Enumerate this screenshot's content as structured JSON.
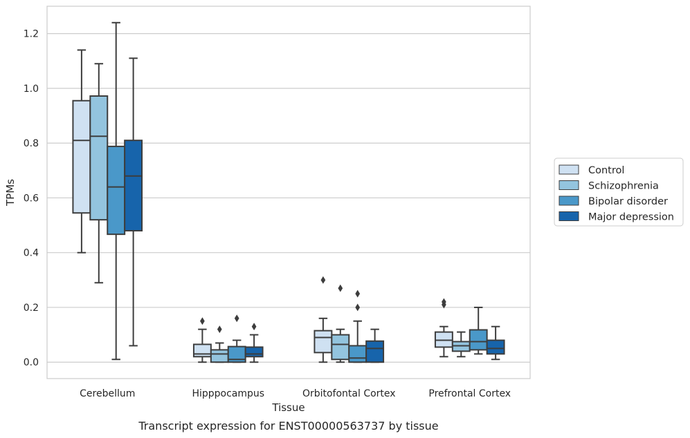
{
  "caption": "Transcript expression for ENST00000563737 by tissue",
  "colors": {
    "Control": "#cfe1f2",
    "Schizophrenia": "#93c4de",
    "Bipolar disorder": "#4a98c9",
    "Major depression": "#1764ab",
    "box_edge": "#3d3d3d",
    "grid": "#cccccc",
    "frame": "#cccccc"
  },
  "chart_data": {
    "type": "boxplot",
    "title": "",
    "xlabel": "Tissue",
    "ylabel": "TPMs",
    "ylim": [
      -0.06,
      1.3
    ],
    "yticks": [
      0.0,
      0.2,
      0.4,
      0.6,
      0.8,
      1.0,
      1.2
    ],
    "ytick_labels": [
      "0.0",
      "0.2",
      "0.4",
      "0.6",
      "0.8",
      "1.0",
      "1.2"
    ],
    "grid": "horizontal",
    "legend_position": "right",
    "categories": [
      "Cerebellum",
      "Hipppocampus",
      "Orbitofontal Cortex",
      "Prefrontal Cortex"
    ],
    "series": [
      {
        "name": "Control",
        "boxes": [
          {
            "whisker_low": 0.4,
            "q1": 0.545,
            "median": 0.81,
            "q3": 0.955,
            "whisker_high": 1.14,
            "outliers": []
          },
          {
            "whisker_low": 0.0,
            "q1": 0.02,
            "median": 0.03,
            "q3": 0.065,
            "whisker_high": 0.12,
            "outliers": [
              0.15
            ]
          },
          {
            "whisker_low": 0.0,
            "q1": 0.035,
            "median": 0.09,
            "q3": 0.115,
            "whisker_high": 0.16,
            "outliers": [
              0.3
            ]
          },
          {
            "whisker_low": 0.02,
            "q1": 0.055,
            "median": 0.08,
            "q3": 0.11,
            "whisker_high": 0.13,
            "outliers": [
              0.21,
              0.22
            ]
          }
        ]
      },
      {
        "name": "Schizophrenia",
        "boxes": [
          {
            "whisker_low": 0.29,
            "q1": 0.52,
            "median": 0.825,
            "q3": 0.972,
            "whisker_high": 1.09,
            "outliers": []
          },
          {
            "whisker_low": 0.0,
            "q1": 0.0,
            "median": 0.03,
            "q3": 0.045,
            "whisker_high": 0.07,
            "outliers": [
              0.12
            ]
          },
          {
            "whisker_low": 0.0,
            "q1": 0.01,
            "median": 0.065,
            "q3": 0.1,
            "whisker_high": 0.12,
            "outliers": [
              0.27
            ]
          },
          {
            "whisker_low": 0.02,
            "q1": 0.04,
            "median": 0.06,
            "q3": 0.075,
            "whisker_high": 0.11,
            "outliers": []
          }
        ]
      },
      {
        "name": "Bipolar disorder",
        "boxes": [
          {
            "whisker_low": 0.01,
            "q1": 0.467,
            "median": 0.64,
            "q3": 0.788,
            "whisker_high": 1.24,
            "outliers": []
          },
          {
            "whisker_low": 0.0,
            "q1": 0.0,
            "median": 0.01,
            "q3": 0.057,
            "whisker_high": 0.08,
            "outliers": [
              0.16
            ]
          },
          {
            "whisker_low": 0.0,
            "q1": 0.0,
            "median": 0.015,
            "q3": 0.06,
            "whisker_high": 0.15,
            "outliers": [
              0.2,
              0.25
            ]
          },
          {
            "whisker_low": 0.03,
            "q1": 0.045,
            "median": 0.075,
            "q3": 0.118,
            "whisker_high": 0.2,
            "outliers": []
          }
        ]
      },
      {
        "name": "Major depression",
        "boxes": [
          {
            "whisker_low": 0.06,
            "q1": 0.48,
            "median": 0.68,
            "q3": 0.81,
            "whisker_high": 1.11,
            "outliers": []
          },
          {
            "whisker_low": 0.0,
            "q1": 0.02,
            "median": 0.03,
            "q3": 0.055,
            "whisker_high": 0.1,
            "outliers": [
              0.13
            ]
          },
          {
            "whisker_low": 0.0,
            "q1": 0.0,
            "median": 0.05,
            "q3": 0.077,
            "whisker_high": 0.12,
            "outliers": []
          },
          {
            "whisker_low": 0.01,
            "q1": 0.03,
            "median": 0.05,
            "q3": 0.08,
            "whisker_high": 0.13,
            "outliers": []
          }
        ]
      }
    ]
  }
}
